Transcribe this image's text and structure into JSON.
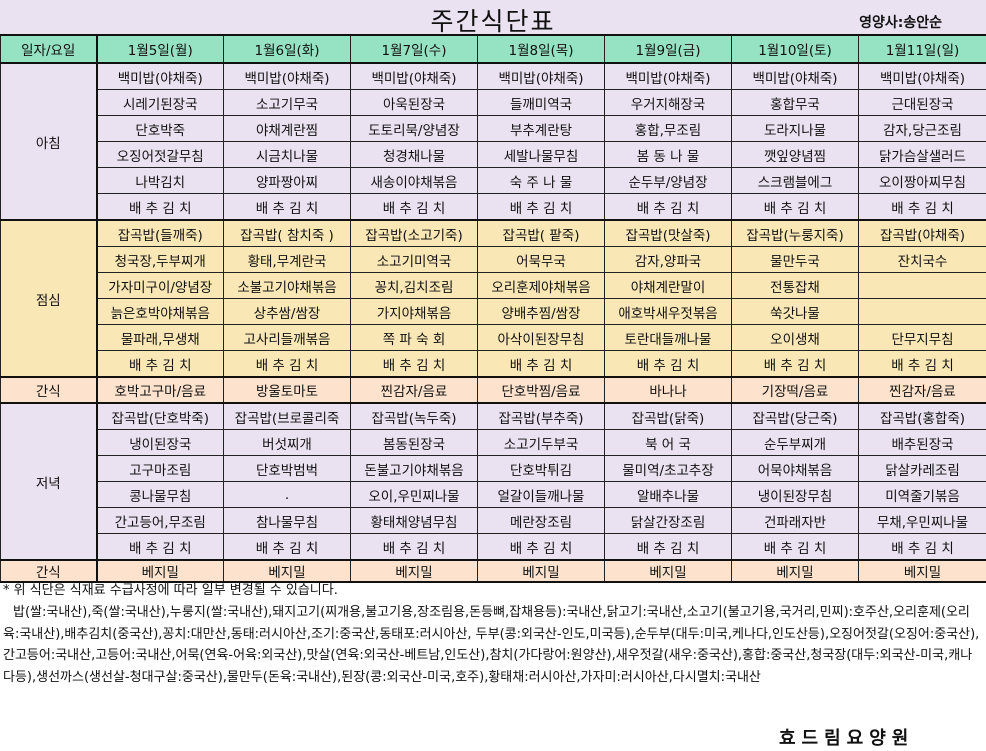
{
  "header": {
    "title": "주간식단표",
    "dietitian": "영양사:송안순"
  },
  "columns": {
    "label": "일자/요일",
    "days": [
      "1월5일(월)",
      "1월6일(화)",
      "1월7일(수)",
      "1월8일(목)",
      "1월9일(금)",
      "1월10일(토)",
      "1월11일(일)"
    ]
  },
  "meals": {
    "breakfast": {
      "label": "아침",
      "rows": [
        [
          "백미밥(야채죽)",
          "백미밥(야채죽)",
          "백미밥(야채죽)",
          "백미밥(야채죽)",
          "백미밥(야채죽)",
          "백미밥(야채죽)",
          "백미밥(야채죽)"
        ],
        [
          "시레기된장국",
          "소고기무국",
          "아욱된장국",
          "들깨미역국",
          "우거지해장국",
          "홍합무국",
          "근대된장국"
        ],
        [
          "단호박죽",
          "야채계란찜",
          "도토리묵/양념장",
          "부추계란탕",
          "홍합,무조림",
          "도라지나물",
          "감자,당근조림"
        ],
        [
          "오징어젓갈무침",
          "시금치나물",
          "청경채나물",
          "세발나물무침",
          "봄 동 나 물",
          "깻잎양념찜",
          "닭가슴살샐러드"
        ],
        [
          "나박김치",
          "양파짱아찌",
          "새송이야채볶음",
          "숙 주 나 물",
          "순두부/양념장",
          "스크램블에그",
          "오이짱아찌무침"
        ],
        [
          "배 추 김 치",
          "배 추 김 치",
          "배 추 김 치",
          "배 추 김 치",
          "배 추 김 치",
          "배 추 김 치",
          "배 추 김 치"
        ]
      ]
    },
    "lunch": {
      "label": "점심",
      "rows": [
        [
          "잡곡밥(들깨죽)",
          "잡곡밥( 참치죽 )",
          "잡곡밥(소고기죽)",
          "잡곡밥( 팥죽)",
          "잡곡밥(맛살죽)",
          "잡곡밥(누룽지죽)",
          "잡곡밥(야채죽)"
        ],
        [
          "청국장,두부찌개",
          "황태,무계란국",
          "소고기미역국",
          "어묵무국",
          "감자,양파국",
          "물만두국",
          "잔치국수"
        ],
        [
          "가자미구이/양념장",
          "소불고기야채볶음",
          "꽁치,김치조림",
          "오리훈제야채볶음",
          "야채계란말이",
          "전통잡채",
          ""
        ],
        [
          "늙은호박야채볶음",
          "상추쌈/쌈장",
          "가지야채볶음",
          "양배추찜/쌈장",
          "애호박새우젓볶음",
          "쑥갓나물",
          ""
        ],
        [
          "물파래,무생채",
          "고사리들깨볶음",
          "쪽 파 숙 회",
          "아삭이된장무침",
          "토란대들깨나물",
          "오이생채",
          "단무지무침"
        ],
        [
          "배 추 김 치",
          "배 추 김 치",
          "배 추 김 치",
          "배 추 김 치",
          "배 추 김 치",
          "배 추 김 치",
          "배 추 김 치"
        ]
      ]
    },
    "snack1": {
      "label": "간식",
      "items": [
        "호박고구마/음료",
        "방울토마토",
        "찐감자/음료",
        "단호박찜/음료",
        "바나나",
        "기장떡/음료",
        "찐감자/음료"
      ]
    },
    "dinner": {
      "label": "저녁",
      "rows": [
        [
          "잡곡밥(단호박죽)",
          "잡곡밥(브로콜리죽",
          "잡곡밥(녹두죽)",
          "잡곡밥(부추죽)",
          "잡곡밥(닭죽)",
          "잡곡밥(당근죽)",
          "잡곡밥(홍합죽)"
        ],
        [
          "냉이된장국",
          "버섯찌개",
          "봄동된장국",
          "소고기두부국",
          "북 어 국",
          "순두부찌개",
          "배추된장국"
        ],
        [
          "고구마조림",
          "단호박범벅",
          "돈불고기야채볶음",
          "단호박튀김",
          "물미역/초고추장",
          "어묵야채볶음",
          "닭살카레조림"
        ],
        [
          "콩나물무침",
          ".",
          "오이,우민찌나물",
          "얼갈이들깨나물",
          "알배추나물",
          "냉이된장무침",
          "미역줄기볶음"
        ],
        [
          "간고등어,무조림",
          "참나물무침",
          "황태채양념무침",
          "메란장조림",
          "닭살간장조림",
          "건파래자반",
          "무채,우민찌나물"
        ],
        [
          "배 추 김 치",
          "배 추 김 치",
          "배 추 김 치",
          "배 추 김 치",
          "배 추 김 치",
          "배 추 김 치",
          "배 추 김 치"
        ]
      ]
    },
    "snack2": {
      "label": "간식",
      "items": [
        "베지밀",
        "베지밀",
        "베지밀",
        "베지밀",
        "베지밀",
        "베지밀",
        "베지밀"
      ]
    }
  },
  "notice": "* 위 식단은 식재료 수급사정에 따라 일부 변경될 수 있습니다.",
  "origin_info": "밥(쌀:국내산),죽(쌀:국내산),누룽지(쌀:국내산),돼지고기(찌개용,불고기용,장조림용,돈등뼈,잡채용등):국내산,닭고기:국내산,소고기(불고기용,국거리,민찌):호주산,오리훈제(오리육:국내산),배추김치(중국산),꽁치:대만산,동태:러시아산,조기:중국산,동태포:러시아산, 두부(콩:외국산-인도,미국등),순두부(대두:미국,케나다,인도산등),오징어젓갈(오징어:중국산),간고등어:국내산,고등어:국내산,어묵(연육-어육:외국산),맛살(연육:외국산-베트남,인도산),참치(가다랑어:원양산),새우젓갈(새우:중국산),홍합:중국산,청국장(대두:외국산-미국,캐나다등),생선까스(생선살-청대구살:중국산),물만두(돈육:국내산),된장(콩:외국산-미국,호주),황태채:러시아산,가자미:러시아산,다시멸치:국내산",
  "footer": "효드림요양원",
  "colors": {
    "header_green": "#96e3c3",
    "breakfast_dinner_bg": "#ebe2f1",
    "lunch_bg": "#f9e7b5",
    "snack_bg": "#fde3cd"
  }
}
